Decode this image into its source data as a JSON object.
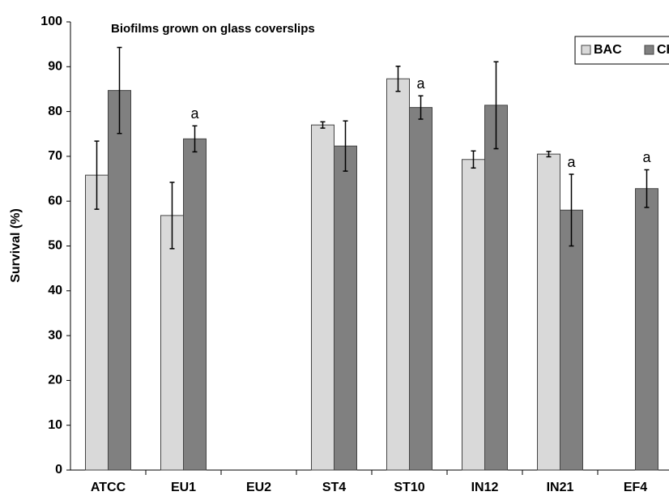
{
  "chart_data": {
    "type": "bar",
    "title": "Biofilms grown on glass coverslips",
    "ylabel": "Survival (%)",
    "categories": [
      "ATCC",
      "EU1",
      "EU2",
      "ST4",
      "ST10",
      "IN12",
      "IN21",
      "EF4"
    ],
    "series": [
      {
        "name": "BAC",
        "color": "#d9d9d9",
        "values": [
          65.8,
          56.8,
          null,
          77,
          87.3,
          69.3,
          70.5,
          null
        ],
        "errors": [
          7.6,
          7.4,
          null,
          0.7,
          2.8,
          1.9,
          0.6,
          null
        ]
      },
      {
        "name": "CH",
        "color": "#808080",
        "values": [
          84.7,
          73.9,
          null,
          72.3,
          80.9,
          81.4,
          58.0,
          62.8
        ],
        "errors": [
          9.6,
          2.9,
          null,
          5.6,
          2.6,
          9.7,
          8.0,
          4.2
        ],
        "labels": [
          null,
          "a",
          null,
          null,
          "a",
          null,
          "a",
          "a"
        ]
      }
    ],
    "ylim": [
      0,
      100
    ],
    "yticks": [
      0,
      10,
      20,
      30,
      40,
      50,
      60,
      70,
      80,
      90,
      100
    ],
    "legend": "upper right"
  }
}
